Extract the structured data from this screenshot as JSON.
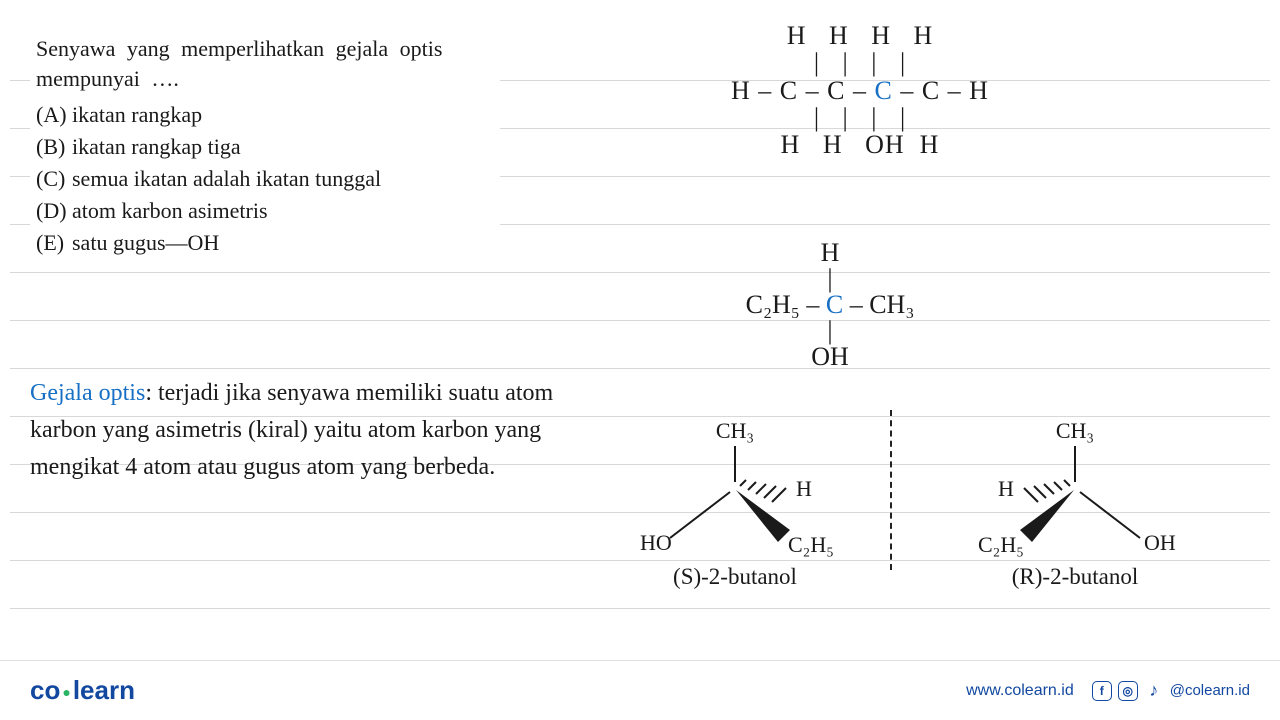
{
  "question": {
    "prompt": "Senyawa yang memperlihatkan gejala optis mempunyai ….",
    "options": [
      {
        "letter": "(A)",
        "text": "ikatan rangkap"
      },
      {
        "letter": "(B)",
        "text": "ikatan rangkap tiga"
      },
      {
        "letter": "(C)",
        "text": "semua ikatan adalah ikatan tunggal"
      },
      {
        "letter": "(D)",
        "text": "atom karbon asimetris"
      },
      {
        "letter": "(E)",
        "text": "satu gugus—OH"
      }
    ]
  },
  "explanation": {
    "lead_blue": "Gejala optis",
    "body": ": terjadi jika senyawa memiliki suatu atom karbon yang asimetris (kiral) yaitu atom karbon yang mengikat 4 atom atau gugus atom yang berbeda."
  },
  "structure1": {
    "top": " H   H   H   H ",
    "bonds1": " |   |   |   | ",
    "chain": "H – C – C – C – C – H",
    "bonds2": " |   |   |   | ",
    "bottom": " H   H   OH  H ",
    "highlight_color": "#1770c4"
  },
  "structure2": {
    "top": "H",
    "bonds1": "|",
    "chain": "C₂H₅ – C – CH₃",
    "bonds2": "|",
    "bottom": "OH",
    "highlight_color": "#1770c4"
  },
  "isomers": {
    "left": {
      "top": "CH₃",
      "back": "H",
      "left_sub": "HO",
      "right_sub": "C₂H₅",
      "name": "(S)-2-butanol"
    },
    "right": {
      "top": "CH₃",
      "back": "H",
      "left_sub": "C₂H₅",
      "right_sub": "OH",
      "name": "(R)-2-butanol",
      "back_side": "left"
    },
    "colors": {
      "stroke": "#1a1a1a",
      "wedge_dash": "#1a1a1a"
    }
  },
  "footer": {
    "logo_left": "co",
    "logo_right": "learn",
    "url": "www.colearn.id",
    "handle": "@colearn.id"
  },
  "rules": {
    "line_color": "#d8d8d8",
    "positions": [
      80,
      128,
      176,
      224,
      272,
      320,
      368,
      416,
      464,
      512,
      560,
      608
    ]
  }
}
